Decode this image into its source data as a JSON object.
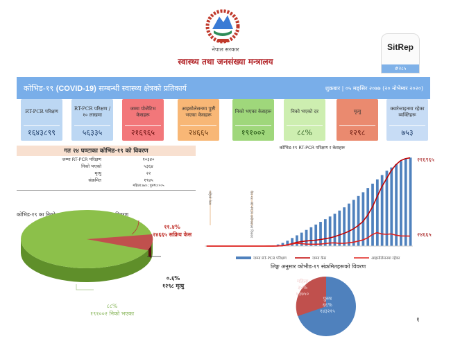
{
  "header": {
    "logo": "नेपाल सरकार emblem",
    "government": "नेपाल सरकार",
    "ministry": "स्वास्थ्य तथा जनसंख्या मन्त्रालय",
    "sitrep_label": "SitRep",
    "sitrep_number": "#२८५"
  },
  "banner": {
    "title_pre": "कोभिड-१९",
    "title_en": "(COVID-19)",
    "title_post": "सम्बन्धी स्वास्थ्य क्षेत्रको प्रतिकार्य",
    "date": "शुक्रबार | ०५ मङ्सिर २०७७ (२० नोभेम्बर २०२०)"
  },
  "cards": [
    {
      "label": "RT-PCR परिक्षण",
      "value": "१६४३८९९",
      "bg": "#bcd7f3",
      "color": "#1f3f6b"
    },
    {
      "label": "RT-PCR परिक्षण /१० लाखमा",
      "value": "५६३३५",
      "bg": "#bcd7f3",
      "color": "#1f3f6b"
    },
    {
      "label": "जम्मा पोजेटिभ केसहरू",
      "value": "२१६९६५",
      "bg": "#f2777a",
      "color": "#6b1010"
    },
    {
      "label": "आइसोलेसनमा पुष्टी भएका केसहरू",
      "value": "२४६६५",
      "bg": "#f8b776",
      "color": "#6b3a10"
    },
    {
      "label": "निको भएका केसहरू",
      "value": "१९१००२",
      "bg": "#9fd77b",
      "color": "#1f4f10"
    },
    {
      "label": "निको भएको दर",
      "value": "८८%",
      "bg": "#cdeeb0",
      "color": "#2f5f20"
    },
    {
      "label": "मृत्यु",
      "value": "१२९८",
      "bg": "#ea8a6f",
      "color": "#6b1a10"
    },
    {
      "label": "क्वारेन्टाइनमा रहेका व्यक्तिहरू",
      "value": "७५३",
      "bg": "#c7dcf5",
      "color": "#1f3f6b"
    }
  ],
  "last24": {
    "title": "गत २४ घण्टाका कोभिड-१९ को विवरण",
    "rows": [
      {
        "label": "जम्मा RT-PCR परिक्षण",
        "value": "१०३४०"
      },
      {
        "label": "निको भएको",
        "value": "५३६४"
      },
      {
        "label": "मृत्यु",
        "value": "२२"
      },
      {
        "label": "संक्रमित",
        "value": "१९४५",
        "note": "महिला:७४०; पुरुष:१२०५"
      }
    ]
  },
  "outcome_pie": {
    "title": "कोभिड-१९ का निको भएका, सक्रिय संक्रमित र मृत्यु विवरण",
    "slices": [
      {
        "pct": "८८%",
        "label": "१९१००२  निको भएका",
        "value": 191002,
        "color": "#8cc04a"
      },
      {
        "pct": "११.४%",
        "label": "२४६६५ सक्रिय केस",
        "value": 24665,
        "color": "#c0504d"
      },
      {
        "pct": "०.६%",
        "label": "१२९८ मृत्यु",
        "value": 1298,
        "color": "#6b1f1f"
      }
    ]
  },
  "chart_data": {
    "type": "bar+line",
    "title": "कोभिड-१९ RT-PCR परिक्षण र केसहरू",
    "annotations": [
      "पहिलो केस",
      "चैत ११: RT-PCR प्रयोगशाला विस्तार"
    ],
    "end_labels": [
      "२१६९६५",
      "२४६६५"
    ],
    "series": [
      {
        "name": "जम्मा RT-PCR परिक्षण",
        "type": "bar",
        "color": "#4f81bd",
        "values": [
          100,
          200,
          300,
          400,
          500,
          600,
          700,
          800,
          1000,
          1500,
          2000,
          2500,
          3000,
          4000,
          10000,
          30000,
          60000,
          100000,
          150000,
          200000,
          250000,
          300000,
          350000,
          400000,
          450000,
          500000,
          550000,
          600000,
          660000,
          720000,
          790000,
          860000,
          930000,
          1000000,
          1080000,
          1160000,
          1240000,
          1320000,
          1400000,
          1460000,
          1520000,
          1580000,
          1620000,
          1643899
        ]
      },
      {
        "name": "जम्मा केस",
        "type": "line",
        "color": "#c00000",
        "values": [
          1,
          1,
          1,
          1,
          1,
          1,
          1,
          1,
          1,
          1,
          1,
          5,
          9,
          30,
          60,
          300,
          1000,
          3000,
          6000,
          9000,
          11000,
          12500,
          13500,
          14500,
          16000,
          18000,
          20000,
          23000,
          27000,
          31000,
          36000,
          42000,
          50000,
          60000,
          75000,
          95000,
          120000,
          145000,
          165000,
          185000,
          200000,
          210000,
          215000,
          216965
        ]
      },
      {
        "name": "आइसोलेसनमा रहेका",
        "type": "line",
        "color": "#e0201c",
        "values": [
          1,
          1,
          1,
          1,
          1,
          1,
          1,
          1,
          1,
          1,
          1,
          1,
          1,
          1,
          1,
          250,
          1000,
          2500,
          5000,
          7000,
          6000,
          5000,
          4500,
          4500,
          5000,
          6000,
          7500,
          8000,
          7000,
          7000,
          8000,
          9500,
          12000,
          15000,
          20000,
          28000,
          33000,
          30000,
          29000,
          30000,
          27000,
          25000,
          24800,
          24665
        ]
      }
    ]
  },
  "gender_pie": {
    "title": "लिङ्ग अनुसार कोभीड-१९ संक्रमितहरूको विवरण",
    "slices": [
      {
        "label": "महिला",
        "pct": "३४%",
        "count": "७३७५०",
        "value": 34,
        "color": "#c0504d"
      },
      {
        "label": "पुरुष",
        "pct": "६६%",
        "count": "१४३२१५",
        "value": 66,
        "color": "#4f81bd"
      }
    ]
  },
  "page_number": "१"
}
